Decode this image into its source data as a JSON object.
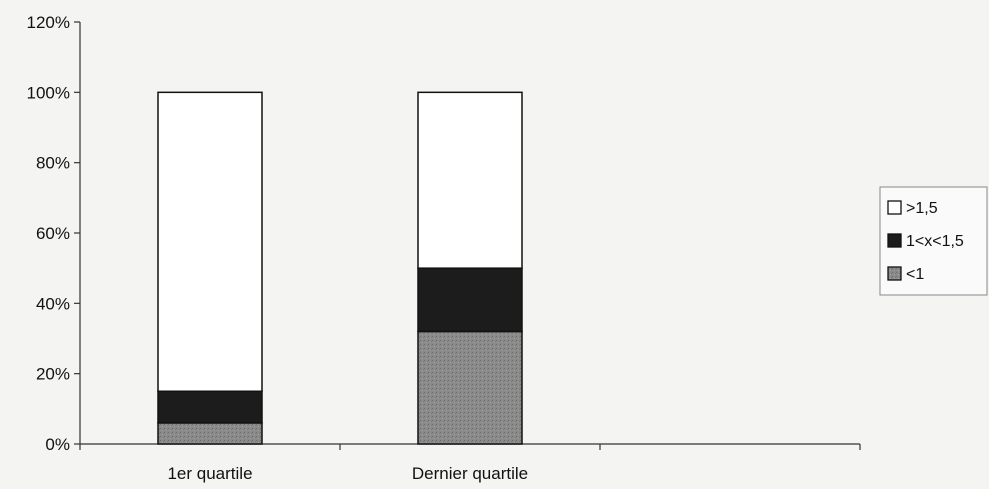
{
  "chart_data": {
    "type": "bar",
    "stacked": true,
    "categories": [
      "1er quartile",
      "Dernier quartile"
    ],
    "series": [
      {
        "name": "<1",
        "values": [
          6,
          32
        ],
        "color": "#8a8a8a",
        "pattern": "dotted-grey"
      },
      {
        "name": "1<x<1,5",
        "values": [
          9,
          18
        ],
        "color": "#1c1c1c"
      },
      {
        "name": ">1,5",
        "values": [
          85,
          50
        ],
        "color": "#ffffff"
      }
    ],
    "yticks": [
      "0%",
      "20%",
      "40%",
      "60%",
      "80%",
      "100%",
      "120%"
    ],
    "ylim": [
      0,
      120
    ],
    "legend_order": [
      ">1,5",
      "1<x<1,5",
      "<1"
    ],
    "legend_position": "right",
    "grid": false
  }
}
